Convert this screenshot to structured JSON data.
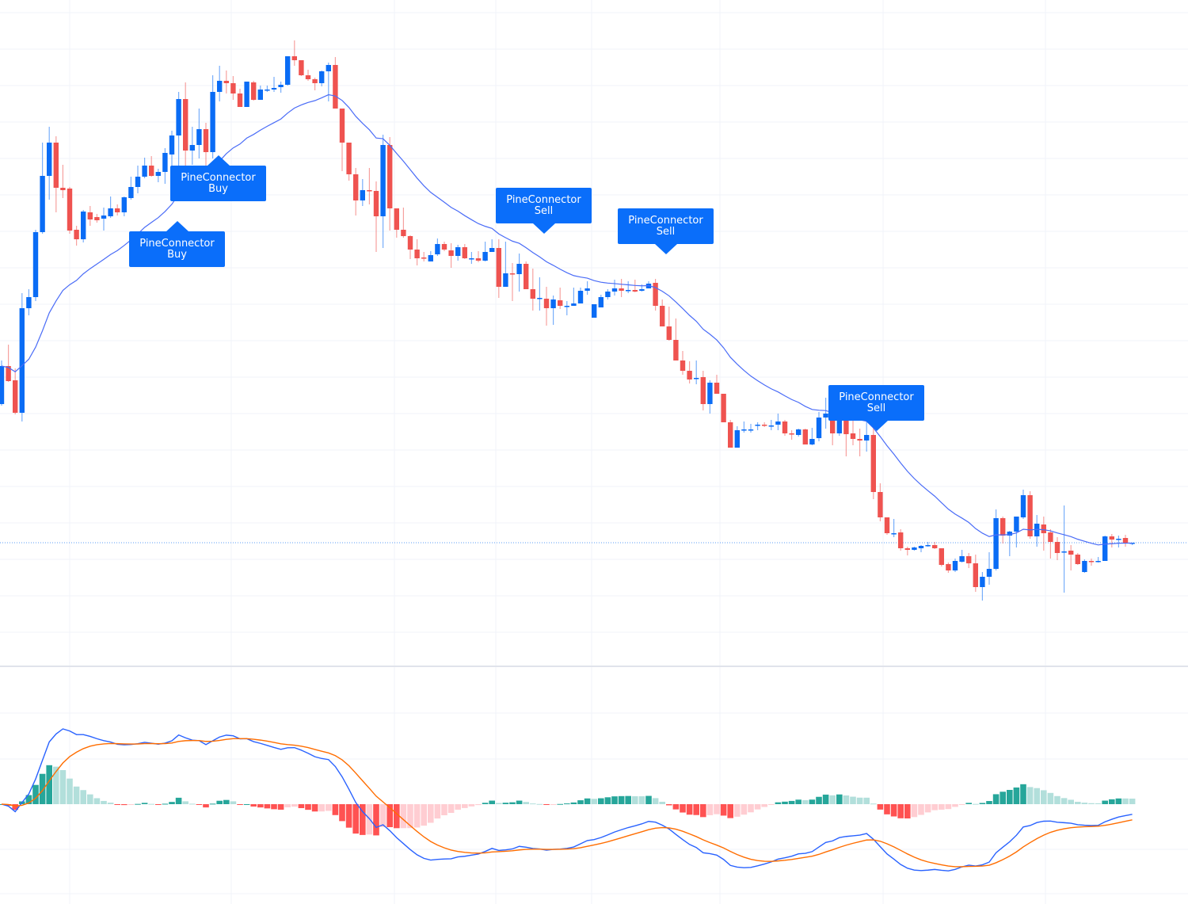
{
  "chart_data": {
    "type": "candlestick",
    "ylim": [
      160,
      1000
    ],
    "grid": true,
    "candle_fields": [
      "open",
      "high",
      "low",
      "close"
    ],
    "candles": [
      [
        490,
        545,
        488,
        538
      ],
      [
        538,
        565,
        518,
        519
      ],
      [
        520,
        535,
        477,
        479
      ],
      [
        479,
        630,
        468,
        611
      ],
      [
        611,
        635,
        602,
        625
      ],
      [
        625,
        710,
        620,
        707
      ],
      [
        707,
        820,
        705,
        778
      ],
      [
        778,
        840,
        748,
        820
      ],
      [
        820,
        828,
        732,
        763
      ],
      [
        763,
        792,
        750,
        760
      ],
      [
        762,
        764,
        705,
        709
      ],
      [
        710,
        715,
        690,
        698
      ],
      [
        698,
        735,
        694,
        733
      ],
      [
        732,
        740,
        715,
        723
      ],
      [
        726,
        730,
        719,
        722
      ],
      [
        724,
        738,
        709,
        728
      ],
      [
        727,
        752,
        725,
        737
      ],
      [
        737,
        742,
        728,
        732
      ],
      [
        732,
        752,
        727,
        751
      ],
      [
        750,
        777,
        748,
        764
      ],
      [
        764,
        791,
        756,
        777
      ],
      [
        777,
        801,
        775,
        791
      ],
      [
        791,
        803,
        777,
        778
      ],
      [
        778,
        787,
        770,
        783
      ],
      [
        783,
        813,
        768,
        807
      ],
      [
        805,
        835,
        790,
        829
      ],
      [
        829,
        884,
        790,
        875
      ],
      [
        875,
        896,
        790,
        810
      ],
      [
        810,
        840,
        792,
        817
      ],
      [
        817,
        863,
        800,
        837
      ],
      [
        837,
        845,
        782,
        808
      ],
      [
        808,
        905,
        800,
        884
      ],
      [
        884,
        917,
        872,
        898
      ],
      [
        898,
        911,
        882,
        895
      ],
      [
        895,
        904,
        874,
        882
      ],
      [
        882,
        888,
        865,
        865
      ],
      [
        865,
        897,
        865,
        897
      ],
      [
        896,
        898,
        873,
        874
      ],
      [
        874,
        892,
        874,
        887
      ],
      [
        886,
        892,
        884,
        887
      ],
      [
        887,
        903,
        884,
        889
      ],
      [
        890,
        897,
        883,
        893
      ],
      [
        893,
        929,
        892,
        929
      ],
      [
        929,
        949,
        917,
        924
      ],
      [
        924,
        924,
        904,
        905
      ],
      [
        905,
        912,
        898,
        900
      ],
      [
        900,
        902,
        886,
        895
      ],
      [
        895,
        911,
        891,
        910
      ],
      [
        910,
        921,
        872,
        918
      ],
      [
        918,
        928,
        863,
        863
      ],
      [
        863,
        863,
        784,
        820
      ],
      [
        820,
        820,
        772,
        780
      ],
      [
        780,
        788,
        728,
        747
      ],
      [
        747,
        774,
        740,
        760
      ],
      [
        760,
        788,
        742,
        759
      ],
      [
        759,
        771,
        682,
        727
      ],
      [
        727,
        830,
        687,
        817
      ],
      [
        817,
        827,
        709,
        737
      ],
      [
        737,
        737,
        700,
        710
      ],
      [
        710,
        738,
        700,
        702
      ],
      [
        702,
        703,
        673,
        685
      ],
      [
        685,
        698,
        665,
        674
      ],
      [
        675,
        682,
        670,
        674
      ],
      [
        670,
        683,
        670,
        678
      ],
      [
        679,
        699,
        677,
        692
      ],
      [
        692,
        695,
        683,
        685
      ],
      [
        684,
        693,
        662,
        677
      ],
      [
        677,
        691,
        671,
        688
      ],
      [
        688,
        692,
        673,
        674
      ],
      [
        674,
        682,
        667,
        674
      ],
      [
        674,
        683,
        669,
        671
      ],
      [
        671,
        695,
        670,
        682
      ],
      [
        682,
        698,
        682,
        687
      ],
      [
        687,
        698,
        624,
        638
      ],
      [
        638,
        695,
        638,
        655
      ],
      [
        655,
        668,
        620,
        654
      ],
      [
        654,
        680,
        632,
        667
      ],
      [
        667,
        670,
        635,
        635
      ],
      [
        635,
        661,
        608,
        623
      ],
      [
        624,
        650,
        608,
        624
      ],
      [
        623,
        638,
        589,
        611
      ],
      [
        611,
        627,
        590,
        622
      ],
      [
        621,
        637,
        610,
        614
      ],
      [
        614,
        620,
        602,
        614
      ],
      [
        614,
        637,
        614,
        617
      ],
      [
        617,
        637,
        617,
        633
      ],
      [
        633,
        645,
        628,
        636
      ],
      [
        599,
        616,
        599,
        616
      ],
      [
        612,
        628,
        612,
        625
      ],
      [
        625,
        635,
        622,
        632
      ],
      [
        632,
        647,
        627,
        636
      ],
      [
        636,
        648,
        625,
        633
      ],
      [
        634,
        645,
        630,
        634
      ],
      [
        634,
        647,
        631,
        632
      ],
      [
        633,
        641,
        632,
        635
      ],
      [
        636,
        645,
        636,
        642
      ],
      [
        643,
        648,
        608,
        614
      ],
      [
        614,
        622,
        588,
        588
      ],
      [
        588,
        613,
        570,
        571
      ],
      [
        571,
        598,
        545,
        545
      ],
      [
        545,
        557,
        527,
        532
      ],
      [
        532,
        544,
        516,
        521
      ],
      [
        523,
        545,
        515,
        523
      ],
      [
        524,
        532,
        482,
        490
      ],
      [
        490,
        520,
        478,
        517
      ],
      [
        517,
        527,
        503,
        503
      ],
      [
        503,
        503,
        467,
        467
      ],
      [
        467,
        470,
        435,
        435
      ],
      [
        435,
        462,
        435,
        457
      ],
      [
        457,
        468,
        454,
        458
      ],
      [
        458,
        465,
        454,
        458
      ],
      [
        463,
        467,
        457,
        464
      ],
      [
        464,
        467,
        461,
        463
      ],
      [
        463,
        470,
        457,
        463
      ],
      [
        464,
        478,
        457,
        468
      ],
      [
        468,
        470,
        450,
        453
      ],
      [
        453,
        457,
        445,
        452
      ],
      [
        451,
        459,
        449,
        458
      ],
      [
        458,
        459,
        439,
        439
      ],
      [
        439,
        460,
        438,
        446
      ],
      [
        447,
        480,
        443,
        473
      ],
      [
        473,
        498,
        459,
        478
      ],
      [
        477,
        490,
        438,
        453
      ],
      [
        453,
        473,
        450,
        470
      ],
      [
        470,
        475,
        424,
        452
      ],
      [
        453,
        470,
        438,
        446
      ],
      [
        446,
        459,
        424,
        444
      ],
      [
        444,
        468,
        430,
        451
      ],
      [
        451,
        460,
        370,
        379
      ],
      [
        379,
        390,
        342,
        347
      ],
      [
        347,
        347,
        325,
        327
      ],
      [
        327,
        345,
        322,
        327
      ],
      [
        328,
        332,
        305,
        308
      ],
      [
        308,
        310,
        299,
        306
      ],
      [
        306,
        310,
        305,
        309
      ],
      [
        308,
        312,
        303,
        311
      ],
      [
        311,
        316,
        310,
        312
      ],
      [
        312,
        316,
        307,
        308
      ],
      [
        308,
        308,
        285,
        287
      ],
      [
        288,
        290,
        277,
        280
      ],
      [
        280,
        295,
        278,
        292
      ],
      [
        291,
        306,
        290,
        298
      ],
      [
        298,
        302,
        283,
        289
      ],
      [
        289,
        300,
        253,
        259
      ],
      [
        259,
        278,
        242,
        272
      ],
      [
        272,
        303,
        262,
        282
      ],
      [
        282,
        357,
        280,
        346
      ],
      [
        346,
        348,
        314,
        324
      ],
      [
        324,
        330,
        298,
        329
      ],
      [
        329,
        348,
        309,
        348
      ],
      [
        347,
        382,
        345,
        375
      ],
      [
        375,
        380,
        320,
        323
      ],
      [
        323,
        350,
        310,
        339
      ],
      [
        338,
        348,
        305,
        327
      ],
      [
        328,
        332,
        295,
        316
      ],
      [
        316,
        322,
        293,
        302
      ],
      [
        303,
        362,
        252,
        304
      ],
      [
        305,
        312,
        280,
        300
      ],
      [
        300,
        302,
        287,
        288
      ],
      [
        278,
        294,
        277,
        292
      ],
      [
        292,
        295,
        286,
        291
      ],
      [
        291,
        297,
        290,
        292
      ],
      [
        292,
        324,
        292,
        323
      ],
      [
        323,
        326,
        309,
        319
      ],
      [
        319,
        324,
        309,
        320
      ],
      [
        321,
        325,
        310,
        315
      ],
      [
        315,
        315,
        312,
        315
      ]
    ],
    "signals": [
      {
        "line1": "PineConnector",
        "line2": "Buy",
        "bar": 26
      },
      {
        "line1": "PineConnector",
        "line2": "Buy",
        "bar": 32
      },
      {
        "line1": "PineConnector",
        "line2": "Sell",
        "bar": 80
      },
      {
        "line1": "PineConnector",
        "line2": "Sell",
        "bar": 98
      },
      {
        "line1": "PineConnector",
        "line2": "Sell",
        "bar": 129
      }
    ],
    "moving_average": {
      "type": "EMA",
      "color": "#4a6cf7"
    },
    "macd": {
      "macd_color": "#2962ff",
      "signal_color": "#ff6d00",
      "hist_colors": {
        "pos_rising": "#26a69a",
        "pos_falling": "#b2dfdb",
        "neg_falling": "#ff5252",
        "neg_rising": "#ffcdd2"
      }
    },
    "colors": {
      "up": "#0a6cf5",
      "down": "#ef5350",
      "signal_label": "#0a6efa",
      "grid": "#f0f3fa",
      "price_line": "#5b9cf6"
    }
  }
}
